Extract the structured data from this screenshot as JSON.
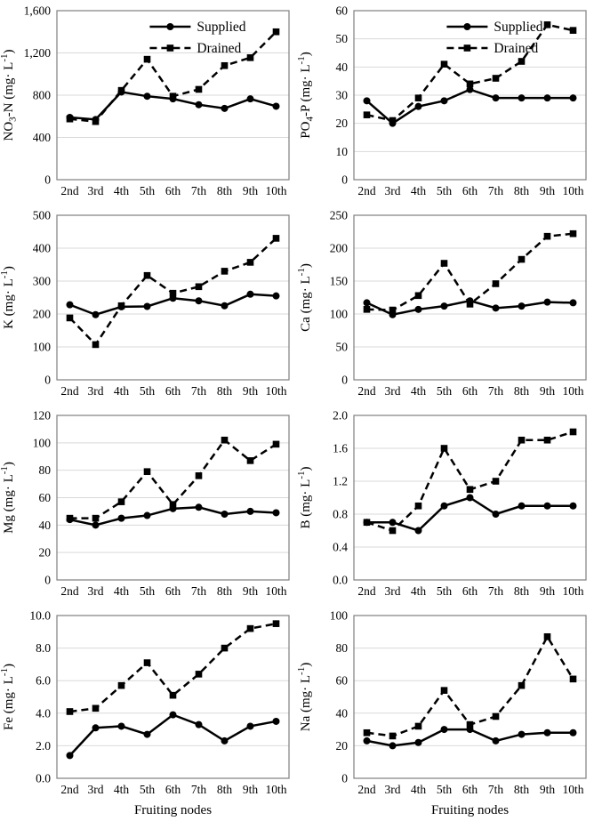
{
  "figure": {
    "series_names": [
      "Supplied",
      "Drained"
    ],
    "categories": [
      "2nd",
      "3rd",
      "4th",
      "5th",
      "6th",
      "7th",
      "8th",
      "9th",
      "10th"
    ],
    "xlabel": "Fruiting nodes",
    "colors": {
      "line": "#000000",
      "text": "#000000",
      "grid": "#d9d9d9",
      "border": "#7f7f7f",
      "background": "#ffffff"
    }
  },
  "chart_data": [
    {
      "id": "no3n",
      "type": "line",
      "ylabel": "NO~3~-N (mg· L^-1^)",
      "ylim": [
        0,
        1600
      ],
      "ytick_values": [
        0,
        400,
        800,
        1200,
        1600
      ],
      "ytick_labels": [
        "0",
        "400",
        "800",
        "1,200",
        "1,600"
      ],
      "legend": true,
      "xlabel": "",
      "series": [
        {
          "name": "Supplied",
          "line_style": "solid",
          "marker": "circle",
          "values": [
            590,
            570,
            830,
            790,
            765,
            710,
            675,
            765,
            695
          ]
        },
        {
          "name": "Drained",
          "line_style": "dashed",
          "marker": "square",
          "values": [
            575,
            550,
            845,
            1140,
            790,
            855,
            1080,
            1155,
            1400
          ]
        }
      ]
    },
    {
      "id": "po4p",
      "type": "line",
      "ylabel": "PO~4~-P (mg· L^-1^)",
      "ylim": [
        0,
        60
      ],
      "ytick_values": [
        0,
        10,
        20,
        30,
        40,
        50,
        60
      ],
      "ytick_labels": [
        "0",
        "10",
        "20",
        "30",
        "40",
        "50",
        "60"
      ],
      "legend": true,
      "xlabel": "",
      "series": [
        {
          "name": "Supplied",
          "line_style": "solid",
          "marker": "circle",
          "values": [
            28,
            20,
            26,
            28,
            32,
            29,
            29,
            29,
            29
          ]
        },
        {
          "name": "Drained",
          "line_style": "dashed",
          "marker": "square",
          "values": [
            23,
            21,
            29,
            41,
            34,
            36,
            42,
            55,
            53
          ]
        }
      ]
    },
    {
      "id": "k",
      "type": "line",
      "ylabel": "K (mg· L^-1^)",
      "ylim": [
        0,
        500
      ],
      "ytick_values": [
        0,
        100,
        200,
        300,
        400,
        500
      ],
      "ytick_labels": [
        "0",
        "100",
        "200",
        "300",
        "400",
        "500"
      ],
      "legend": false,
      "xlabel": "",
      "series": [
        {
          "name": "Supplied",
          "line_style": "solid",
          "marker": "circle",
          "values": [
            228,
            198,
            222,
            223,
            248,
            240,
            225,
            260,
            255
          ]
        },
        {
          "name": "Drained",
          "line_style": "dashed",
          "marker": "square",
          "values": [
            188,
            107,
            225,
            317,
            263,
            283,
            330,
            357,
            430
          ]
        }
      ]
    },
    {
      "id": "ca",
      "type": "line",
      "ylabel": "Ca (mg· L^-1^)",
      "ylim": [
        0,
        250
      ],
      "ytick_values": [
        0,
        50,
        100,
        150,
        200,
        250
      ],
      "ytick_labels": [
        "0",
        "50",
        "100",
        "150",
        "200",
        "250"
      ],
      "legend": false,
      "xlabel": "",
      "series": [
        {
          "name": "Supplied",
          "line_style": "solid",
          "marker": "circle",
          "values": [
            117,
            99,
            107,
            112,
            120,
            109,
            112,
            118,
            117
          ]
        },
        {
          "name": "Drained",
          "line_style": "dashed",
          "marker": "square",
          "values": [
            107,
            106,
            128,
            177,
            115,
            146,
            183,
            218,
            222
          ]
        }
      ]
    },
    {
      "id": "mg",
      "type": "line",
      "ylabel": "Mg (mg· L^-1^)",
      "ylim": [
        0,
        120
      ],
      "ytick_values": [
        0,
        20,
        40,
        60,
        80,
        100,
        120
      ],
      "ytick_labels": [
        "0",
        "20",
        "40",
        "60",
        "80",
        "100",
        "120"
      ],
      "legend": false,
      "xlabel": "",
      "series": [
        {
          "name": "Supplied",
          "line_style": "solid",
          "marker": "circle",
          "values": [
            44,
            40,
            45,
            47,
            52,
            53,
            48,
            50,
            49
          ]
        },
        {
          "name": "Drained",
          "line_style": "dashed",
          "marker": "square",
          "values": [
            45,
            45,
            57,
            79,
            55,
            76,
            102,
            87,
            99
          ]
        }
      ]
    },
    {
      "id": "b",
      "type": "line",
      "ylabel": "B (mg· L^-1^)",
      "ylim": [
        0,
        2.0
      ],
      "ytick_values": [
        0,
        0.4,
        0.8,
        1.2,
        1.6,
        2.0
      ],
      "ytick_labels": [
        "0.0",
        "0.4",
        "0.8",
        "1.2",
        "1.6",
        "2.0"
      ],
      "legend": false,
      "xlabel": "",
      "series": [
        {
          "name": "Supplied",
          "line_style": "solid",
          "marker": "circle",
          "values": [
            0.7,
            0.7,
            0.6,
            0.9,
            1.0,
            0.8,
            0.9,
            0.9,
            0.9
          ]
        },
        {
          "name": "Drained",
          "line_style": "dashed",
          "marker": "square",
          "values": [
            0.7,
            0.6,
            0.9,
            1.6,
            1.1,
            1.2,
            1.7,
            1.7,
            1.8
          ]
        }
      ]
    },
    {
      "id": "fe",
      "type": "line",
      "ylabel": "Fe (mg· L^-1^)",
      "ylim": [
        0,
        10.0
      ],
      "ytick_values": [
        0,
        2.0,
        4.0,
        6.0,
        8.0,
        10.0
      ],
      "ytick_labels": [
        "0.0",
        "2.0",
        "4.0",
        "6.0",
        "8.0",
        "10.0"
      ],
      "legend": false,
      "xlabel": "Fruiting nodes",
      "series": [
        {
          "name": "Supplied",
          "line_style": "solid",
          "marker": "circle",
          "values": [
            1.4,
            3.1,
            3.2,
            2.7,
            3.9,
            3.3,
            2.3,
            3.2,
            3.5
          ]
        },
        {
          "name": "Drained",
          "line_style": "dashed",
          "marker": "square",
          "values": [
            4.1,
            4.3,
            5.7,
            7.1,
            5.1,
            6.4,
            8.0,
            9.2,
            9.5
          ]
        }
      ]
    },
    {
      "id": "na",
      "type": "line",
      "ylabel": "Na (mg· L^-1^)",
      "ylim": [
        0,
        100
      ],
      "ytick_values": [
        0,
        20,
        40,
        60,
        80,
        100
      ],
      "ytick_labels": [
        "0",
        "20",
        "40",
        "60",
        "80",
        "100"
      ],
      "legend": false,
      "xlabel": "Fruiting nodes",
      "series": [
        {
          "name": "Supplied",
          "line_style": "solid",
          "marker": "circle",
          "values": [
            23,
            20,
            22,
            30,
            30,
            23,
            27,
            28,
            28
          ]
        },
        {
          "name": "Drained",
          "line_style": "dashed",
          "marker": "square",
          "values": [
            28,
            26,
            32,
            54,
            33,
            38,
            57,
            87,
            61
          ]
        }
      ]
    }
  ]
}
